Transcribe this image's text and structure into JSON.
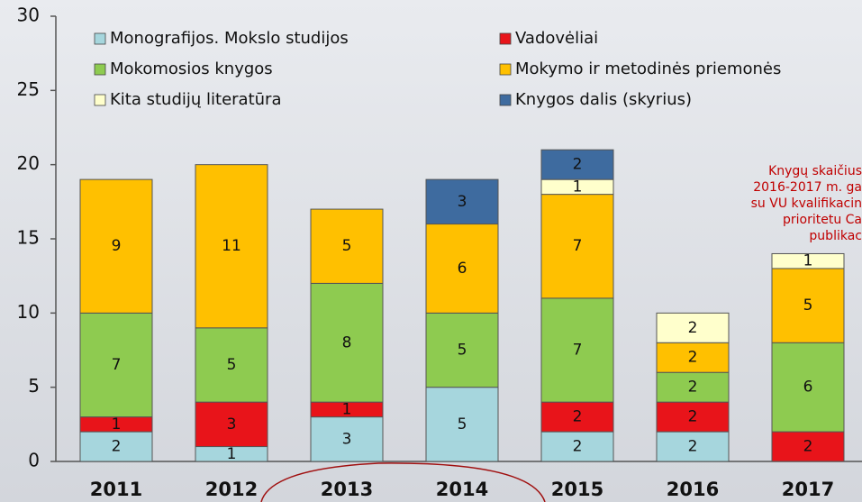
{
  "chart_data": {
    "type": "stacked_bar",
    "categories": [
      "2011",
      "2012",
      "2013",
      "2014",
      "2015",
      "2016",
      "2017"
    ],
    "series": [
      {
        "name": "Monografijos. Mokslo studijos",
        "color": "#a6d6dd",
        "values": [
          2,
          1,
          3,
          5,
          2,
          2,
          0
        ]
      },
      {
        "name": "Vadovėliai",
        "color": "#e8141a",
        "values": [
          1,
          3,
          1,
          0,
          2,
          2,
          2
        ]
      },
      {
        "name": "Mokomosios knygos",
        "color": "#8ecb50",
        "values": [
          7,
          5,
          8,
          5,
          7,
          2,
          6
        ]
      },
      {
        "name": "Mokymo ir metodinės priemonės",
        "color": "#ffc000",
        "values": [
          9,
          11,
          5,
          6,
          7,
          2,
          5
        ]
      },
      {
        "name": "Kita studijų literatūra",
        "color": "#ffffcc",
        "values": [
          0,
          0,
          0,
          0,
          1,
          2,
          1
        ]
      },
      {
        "name": "Knygos dalis (skyrius)",
        "color": "#3e6b9f",
        "values": [
          0,
          0,
          0,
          3,
          2,
          0,
          0
        ]
      }
    ],
    "ylim": [
      0,
      30
    ],
    "yticks": [
      0,
      5,
      10,
      15,
      20,
      25,
      30
    ],
    "annotation": [
      "Knygų skaičius",
      "2016-2017 m. ga",
      "su VU kvalifikacin",
      "prioritetu Ca",
      "publikac"
    ]
  }
}
